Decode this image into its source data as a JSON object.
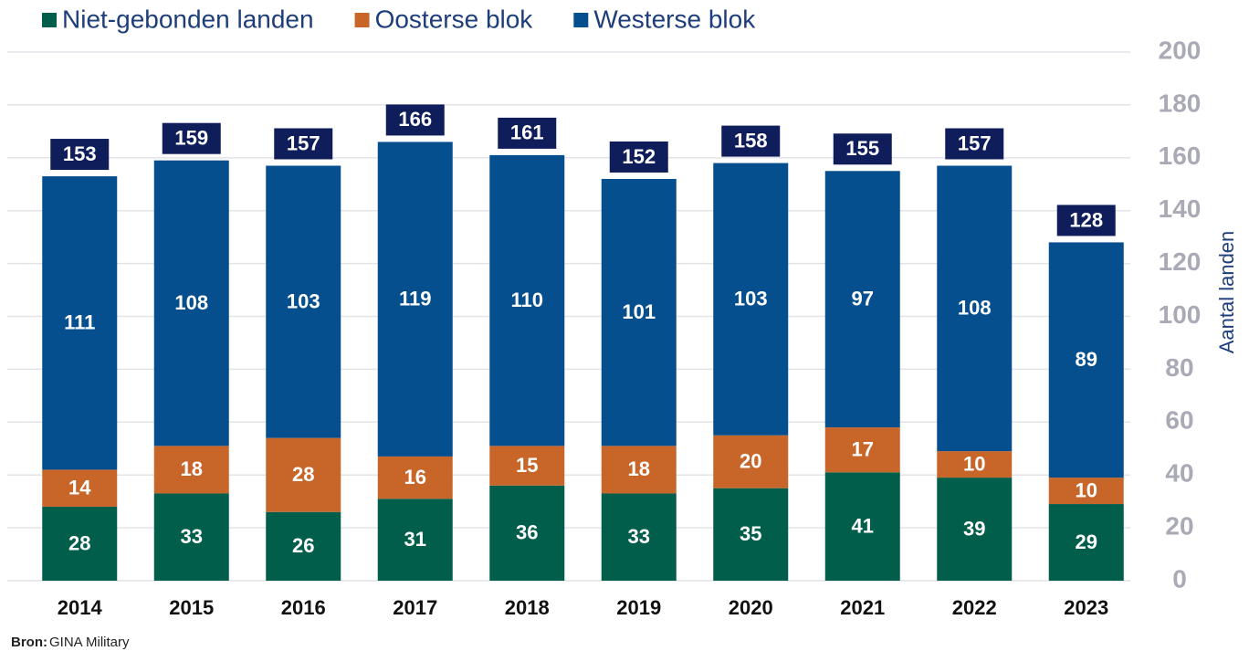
{
  "chart_data": {
    "type": "stacked_bar",
    "categories": [
      "2014",
      "2015",
      "2016",
      "2017",
      "2018",
      "2019",
      "2020",
      "2021",
      "2022",
      "2023"
    ],
    "series": [
      {
        "name": "Niet-gebonden landen",
        "color": "#005e4b",
        "values": [
          28,
          33,
          26,
          31,
          36,
          33,
          35,
          41,
          39,
          29
        ]
      },
      {
        "name": "Oosterse blok",
        "color": "#c8662a",
        "values": [
          14,
          18,
          28,
          16,
          15,
          18,
          20,
          17,
          10,
          10
        ]
      },
      {
        "name": "Westerse blok",
        "color": "#064f8f",
        "values": [
          111,
          108,
          103,
          119,
          110,
          101,
          103,
          97,
          108,
          89
        ]
      }
    ],
    "totals": [
      153,
      159,
      157,
      166,
      161,
      152,
      158,
      155,
      157,
      128
    ],
    "y_axis_label": "Aantal landen",
    "ylim": [
      0,
      200
    ],
    "yticks": [
      0,
      20,
      40,
      60,
      80,
      100,
      120,
      140,
      160,
      180,
      200
    ],
    "grid": true,
    "legend": "top",
    "source": {
      "label": "Bron:",
      "text": "GINA Military"
    }
  }
}
